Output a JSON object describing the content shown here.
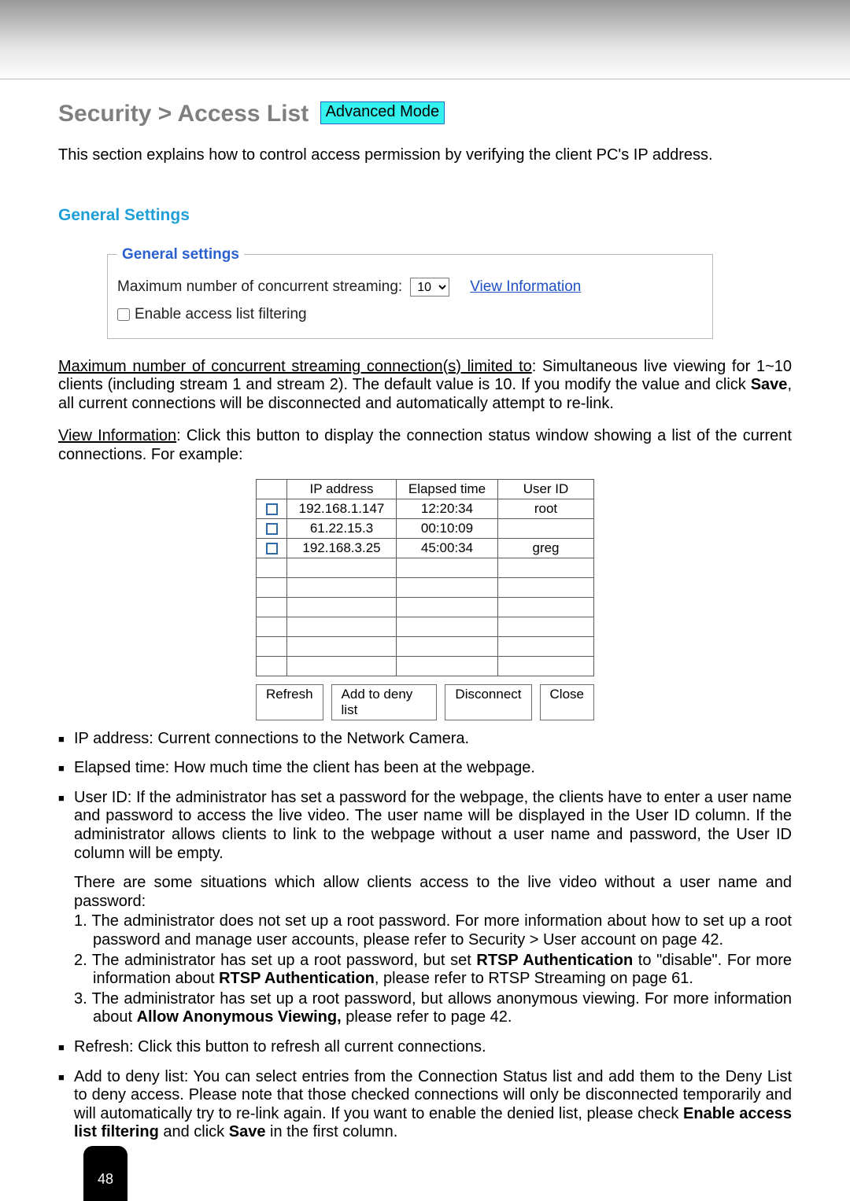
{
  "heading": {
    "breadcrumb": "Security  >  Access List",
    "badge": "Advanced Mode"
  },
  "intro": "This section explains how to control access permission by verifying the client PC's IP address.",
  "section": {
    "generalSettingsHeader": "General Settings",
    "fieldsetLegend": "General settings",
    "maxStreamLabel": "Maximum number of concurrent streaming:",
    "maxStreamValue": "10",
    "viewInfoLink": "View Information",
    "enableFilterLabel": "Enable access list filtering"
  },
  "paraMaxPrefix": "Maximum number of concurrent streaming connection(s) limited to",
  "paraMaxRest": ": Simultaneous live viewing for 1~10 clients (including stream 1 and stream 2). The default value is 10. If you modify the value and click ",
  "paraMaxStrong": "Save",
  "paraMaxTail": ", all current connections will be disconnected and automatically attempt to re-link.",
  "paraViewPrefix": "View Information",
  "paraViewRest": ": Click this button to display the connection status window showing a list of the current connections. For example:",
  "table": {
    "headers": [
      "IP address",
      "Elapsed time",
      "User ID"
    ],
    "rows": [
      {
        "ip": "192.168.1.147",
        "elapsed": "12:20:34",
        "user": "root"
      },
      {
        "ip": "61.22.15.3",
        "elapsed": "00:10:09",
        "user": ""
      },
      {
        "ip": "192.168.3.25",
        "elapsed": "45:00:34",
        "user": "greg"
      }
    ],
    "emptyRows": 6,
    "buttons": {
      "refresh": "Refresh",
      "addDeny": "Add to deny list",
      "disconnect": "Disconnect",
      "close": "Close"
    }
  },
  "bullets": {
    "ip": "IP address: Current connections to the Network Camera.",
    "elapsed": "Elapsed time: How much time the client has been at the webpage.",
    "userid": "User ID: If the administrator has set a password for the webpage, the clients have to enter a user name and password to access the live video. The user name will be displayed in the User ID column. If  the administrator allows clients to link to the webpage without a user name and password, the User ID column will be empty.",
    "situations": "There are some situations which allow clients access to the live video without a user name and password:",
    "s1a": "1. The administrator does not set up a root password. For more information about how to set up a root password and manage user accounts, please refer to Security > User account on page 42.",
    "s2a": "2. The administrator has set up a root password, but set ",
    "s2strong1": "RTSP Authentication",
    "s2b": " to \"disable\". For more information about ",
    "s2strong2": "RTSP Authentication",
    "s2c": ", please refer to RTSP Streaming on page 61.",
    "s3a": "3. The administrator has set up a root password, but allows anonymous viewing. For more information about ",
    "s3strong": "Allow Anonymous Viewing,",
    "s3b": " please refer to page 42.",
    "refresh": "Refresh: Click this button to refresh all current connections.",
    "addDeny1": "Add to deny list: You can select entries from the Connection Status list and add them to the Deny List to deny access. Please note that those checked connections will only be disconnected temporarily and will automatically try to re-link again. If you want to enable the denied list, please check ",
    "addDenyStrong1": "Enable access list filtering",
    "addDeny2": " and click ",
    "addDenyStrong2": "Save",
    "addDeny3": " in the first column."
  },
  "pageNumber": "48",
  "colors": {
    "headingGrey": "#7f7f7f",
    "subheadBlue": "#1f9fd6",
    "legendBlue": "#2a5fd0",
    "linkBlue": "#1f4fc4",
    "badgeBg": "#34f2ee",
    "badgeBorder": "#1f6cc7",
    "checkBorder": "#2f6aa7"
  }
}
